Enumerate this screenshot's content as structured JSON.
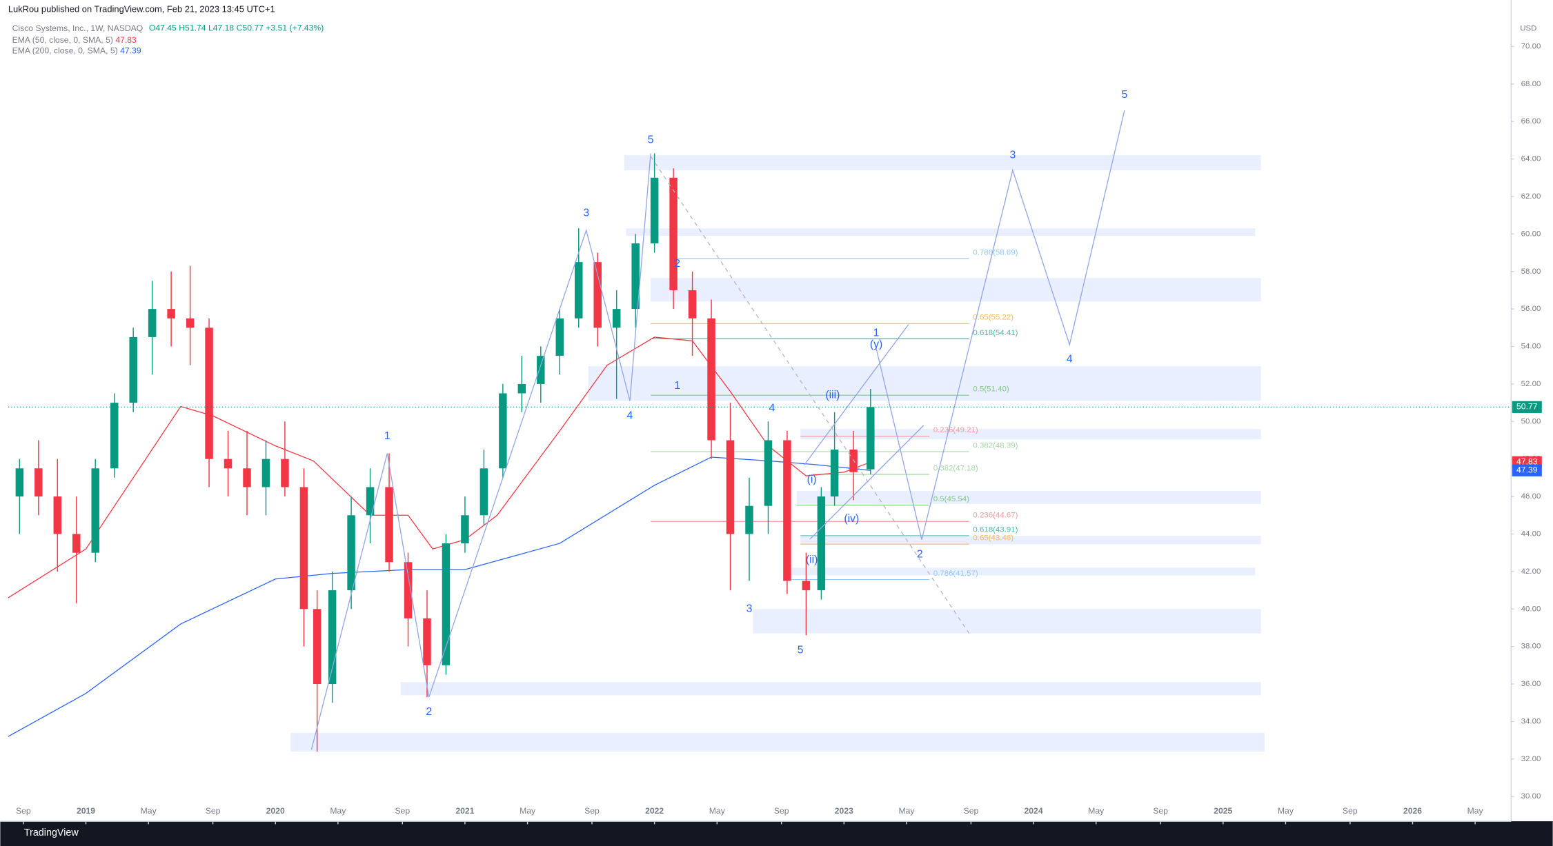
{
  "header": {
    "publisher": "LukRou published on TradingView.com, Feb 21, 2023 13:45 UTC+1",
    "footer": "TradingView",
    "currency": "USD"
  },
  "legend": {
    "symbol": "Cisco Systems, Inc., 1W, NASDAQ",
    "open": "O47.45",
    "high": "H51.74",
    "low": "L47.18",
    "close": "C50.77",
    "change": "+3.51 (+7.43%)",
    "ema50": {
      "name": "EMA (50, close, 0, SMA, 5)",
      "value": 47.83
    },
    "ema200": {
      "name": "EMA (200, close, 0, SMA, 5)",
      "value": 47.39
    }
  },
  "chart_data": {
    "type": "candlestick",
    "up_color": "#089981",
    "down_color": "#f23645",
    "xlim": [
      2018.59,
      2026.52
    ],
    "ylim": [
      28.68,
      71.95
    ],
    "xticks": [
      {
        "value": 2018.67,
        "label": "Sep"
      },
      2019,
      {
        "value": 2019.33,
        "label": "May"
      },
      {
        "value": 2019.67,
        "label": "Sep"
      },
      2020,
      {
        "value": 2020.33,
        "label": "May"
      },
      {
        "value": 2020.67,
        "label": "Sep"
      },
      2021,
      {
        "value": 2021.33,
        "label": "May"
      },
      {
        "value": 2021.67,
        "label": "Sep"
      },
      2022,
      {
        "value": 2022.33,
        "label": "May"
      },
      {
        "value": 2022.67,
        "label": "Sep"
      },
      2023,
      {
        "value": 2023.33,
        "label": "May"
      },
      {
        "value": 2023.67,
        "label": "Sep"
      },
      2024,
      {
        "value": 2024.33,
        "label": "May"
      },
      {
        "value": 2024.67,
        "label": "Sep"
      },
      2025,
      {
        "value": 2025.33,
        "label": "May"
      },
      {
        "value": 2025.67,
        "label": "Sep"
      },
      2026,
      {
        "value": 2026.33,
        "label": "May"
      }
    ],
    "yticks": [
      {
        "value": 30,
        "label": "30.00"
      },
      {
        "value": 32,
        "label": "32.00"
      },
      {
        "value": 34,
        "label": "34.00"
      },
      {
        "value": 36,
        "label": "36.00"
      },
      {
        "value": 38,
        "label": "38.00"
      },
      {
        "value": 40,
        "label": "40.00"
      },
      {
        "value": 42,
        "label": "42.00"
      },
      {
        "value": 44,
        "label": "44.00"
      },
      {
        "value": 46,
        "label": "46.00"
      },
      {
        "value": 48,
        "label": "48.00"
      },
      {
        "value": 50,
        "label": "50.00"
      },
      {
        "value": 52,
        "label": "52.00"
      },
      {
        "value": 54,
        "label": "54.00"
      },
      {
        "value": 56,
        "label": "56.00"
      },
      {
        "value": 58,
        "label": "58.00"
      },
      {
        "value": 60,
        "label": "60.00"
      },
      {
        "value": 62,
        "label": "62.00"
      },
      {
        "value": 64,
        "label": "64.00"
      },
      {
        "value": 66,
        "label": "66.00"
      },
      {
        "value": 68,
        "label": "68.00"
      },
      {
        "value": 70,
        "label": "70.00"
      }
    ],
    "x": [
      2018.65,
      2018.75,
      2018.85,
      2018.95,
      2019.05,
      2019.15,
      2019.25,
      2019.35,
      2019.45,
      2019.55,
      2019.65,
      2019.75,
      2019.85,
      2019.95,
      2020.05,
      2020.15,
      2020.22,
      2020.3,
      2020.4,
      2020.5,
      2020.6,
      2020.7,
      2020.8,
      2020.9,
      2021.0,
      2021.1,
      2021.2,
      2021.3,
      2021.4,
      2021.5,
      2021.6,
      2021.7,
      2021.8,
      2021.9,
      2022.0,
      2022.1,
      2022.2,
      2022.3,
      2022.4,
      2022.5,
      2022.6,
      2022.7,
      2022.8,
      2022.88,
      2022.95,
      2023.05,
      2023.14
    ],
    "open": [
      46,
      47.5,
      46,
      44,
      43,
      47.5,
      51,
      54.5,
      56,
      55.5,
      55,
      48,
      47.5,
      46.5,
      48,
      46.5,
      40,
      36,
      41,
      45,
      46.5,
      42.5,
      39.5,
      37,
      43.5,
      45,
      47.5,
      51.5,
      52,
      53.5,
      55.5,
      58.5,
      55,
      56,
      59.5,
      63,
      57,
      55.5,
      49,
      44,
      45.5,
      49,
      41.5,
      41,
      46,
      48.5,
      47.45
    ],
    "high": [
      48,
      49,
      48,
      46,
      48,
      51.5,
      55,
      57.5,
      58,
      58.3,
      55.5,
      49.5,
      49.5,
      49,
      50,
      47.5,
      41,
      42,
      46,
      47.5,
      48.3,
      43,
      41,
      44,
      46,
      48.5,
      52,
      53.5,
      54,
      56,
      60.3,
      59,
      57,
      60,
      64.3,
      63.5,
      58,
      56.5,
      51,
      47,
      50,
      49.5,
      43,
      46.5,
      50.5,
      49.5,
      51.74
    ],
    "low": [
      44,
      45,
      42,
      40.3,
      42.5,
      47,
      50.5,
      52.5,
      54,
      53,
      46.5,
      46,
      45,
      45,
      46,
      38,
      32.4,
      35,
      40,
      43.5,
      42,
      38,
      35.3,
      36.5,
      43,
      44.5,
      47,
      50.5,
      51,
      52.5,
      55,
      54,
      51.2,
      55,
      59,
      56,
      53.5,
      48,
      41,
      41.5,
      44,
      40.8,
      38.6,
      40.5,
      45.5,
      45.8,
      47.18
    ],
    "close": [
      47.5,
      46,
      44,
      43,
      47.5,
      51,
      54.5,
      56,
      55.5,
      55,
      48,
      47.5,
      46.5,
      48,
      46.5,
      40,
      36,
      41,
      45,
      46.5,
      42.5,
      39.5,
      37,
      43.5,
      45,
      47.5,
      51.5,
      52,
      53.5,
      55.5,
      58.5,
      55,
      56,
      59.5,
      63,
      57,
      55.5,
      49,
      44,
      45.5,
      49,
      41.5,
      41,
      46,
      48.5,
      47.3,
      50.77
    ],
    "lines": [
      {
        "name": "EMA 50",
        "color": "#f23645",
        "x": [
          2018.59,
          2019.0,
          2019.5,
          2019.67,
          2020.0,
          2020.2,
          2020.5,
          2020.7,
          2020.83,
          2021.0,
          2021.17,
          2021.5,
          2021.75,
          2022.0,
          2022.2,
          2022.4,
          2022.6,
          2022.8,
          2023.0,
          2023.14
        ],
        "values": [
          40.6,
          43.2,
          50.8,
          50.3,
          48.7,
          47.9,
          45,
          45,
          43.2,
          43.7,
          45,
          49.5,
          53,
          54.5,
          54.3,
          51.6,
          48.7,
          47.1,
          47.3,
          47.83
        ]
      },
      {
        "name": "EMA 200",
        "color": "#2962ff",
        "x": [
          2018.59,
          2019.0,
          2019.5,
          2020.0,
          2020.3,
          2020.7,
          2021.0,
          2021.5,
          2022.0,
          2022.3,
          2022.6,
          2022.85,
          2023.14
        ],
        "values": [
          33.2,
          35.5,
          39.2,
          41.6,
          41.9,
          42.1,
          42.1,
          43.5,
          46.6,
          48.1,
          47.9,
          47.7,
          47.39
        ]
      }
    ],
    "price_labels": [
      {
        "value": 50.77,
        "color": "#089981"
      },
      {
        "value": 47.83,
        "color": "#f23645"
      },
      {
        "value": 47.39,
        "color": "#2962ff"
      }
    ],
    "zones": [
      {
        "x": [
          2021.84,
          2025.2
        ],
        "y": [
          63.4,
          64.2
        ]
      },
      {
        "x": [
          2021.85,
          2025.17
        ],
        "y": [
          59.9,
          60.3
        ]
      },
      {
        "x": [
          2021.98,
          2025.2
        ],
        "y": [
          56.4,
          57.65
        ]
      },
      {
        "x": [
          2021.65,
          2025.2
        ],
        "y": [
          51.1,
          52.95
        ]
      },
      {
        "x": [
          2022.77,
          2025.2
        ],
        "y": [
          49.05,
          49.6
        ]
      },
      {
        "x": [
          2022.75,
          2025.2
        ],
        "y": [
          45.6,
          46.3
        ]
      },
      {
        "x": [
          2022.77,
          2025.2
        ],
        "y": [
          43.45,
          43.9
        ]
      },
      {
        "x": [
          2022.68,
          2025.17
        ],
        "y": [
          41.8,
          42.2
        ]
      },
      {
        "x": [
          2022.52,
          2025.2
        ],
        "y": [
          38.7,
          40.0
        ]
      },
      {
        "x": [
          2020.66,
          2025.2
        ],
        "y": [
          35.4,
          36.1
        ]
      },
      {
        "x": [
          2020.08,
          2025.22
        ],
        "y": [
          32.4,
          33.4
        ]
      }
    ],
    "fibs": [
      {
        "label": "0.786(58.69)",
        "value": 58.69,
        "color": "#90caf9",
        "x": [
          2022.1,
          2023.66
        ]
      },
      {
        "label": "0.65(55.22)",
        "value": 55.22,
        "color": "#ffb74d",
        "x": [
          2021.98,
          2023.66
        ]
      },
      {
        "label": "0.618(54.41)",
        "value": 54.41,
        "color": "#4db6ac",
        "x": [
          2021.98,
          2023.66
        ]
      },
      {
        "label": "0.5(51.40)",
        "value": 51.4,
        "color": "#81c784",
        "x": [
          2021.98,
          2023.66
        ]
      },
      {
        "label": "0.236(49.21)",
        "value": 49.21,
        "color": "#ef9a9a",
        "x": [
          2022.77,
          2023.45
        ]
      },
      {
        "label": "0.382(48.39)",
        "value": 48.39,
        "color": "#a5d6a7",
        "x": [
          2021.98,
          2023.66
        ]
      },
      {
        "label": "0.382(47.18)",
        "value": 47.18,
        "color": "#a5d6a7",
        "x": [
          2022.83,
          2023.45
        ]
      },
      {
        "label": "0.5(45.54)",
        "value": 45.54,
        "color": "#81c784",
        "x": [
          2022.75,
          2023.45
        ]
      },
      {
        "label": "0.236(44.67)",
        "value": 44.67,
        "color": "#ef9a9a",
        "x": [
          2021.98,
          2023.66
        ]
      },
      {
        "label": "0.618(43.91)",
        "value": 43.91,
        "color": "#4db6ac",
        "x": [
          2022.77,
          2023.66
        ]
      },
      {
        "label": "0.65(43.46)",
        "value": 43.46,
        "color": "#ffb74d",
        "x": [
          2022.77,
          2023.66
        ]
      },
      {
        "label": "0.786(41.57)",
        "value": 41.57,
        "color": "#90caf9",
        "x": [
          2022.68,
          2023.45
        ]
      }
    ],
    "wave_labels": [
      {
        "text": "5",
        "x": 2021.98,
        "y": 65.0
      },
      {
        "text": "3",
        "x": 2021.64,
        "y": 61.1
      },
      {
        "text": "2",
        "x": 2022.12,
        "y": 58.4
      },
      {
        "text": "1",
        "x": 2022.12,
        "y": 51.9
      },
      {
        "text": "4",
        "x": 2021.87,
        "y": 50.3
      },
      {
        "text": "4",
        "x": 2022.62,
        "y": 50.7
      },
      {
        "text": "3",
        "x": 2022.5,
        "y": 40.0
      },
      {
        "text": "5",
        "x": 2022.77,
        "y": 37.8
      },
      {
        "text": "1",
        "x": 2020.59,
        "y": 49.2
      },
      {
        "text": "2",
        "x": 2020.81,
        "y": 34.5
      },
      {
        "text": "(iii)",
        "x": 2022.94,
        "y": 51.4
      },
      {
        "text": "(i)",
        "x": 2022.83,
        "y": 46.9
      },
      {
        "text": "(ii)",
        "x": 2022.83,
        "y": 42.6
      },
      {
        "text": "(iv)",
        "x": 2023.04,
        "y": 44.8
      },
      {
        "text": "(y)",
        "x": 2023.17,
        "y": 54.1
      },
      {
        "text": "1",
        "x": 2023.17,
        "y": 54.7
      },
      {
        "text": "2",
        "x": 2023.4,
        "y": 42.9
      },
      {
        "text": "3",
        "x": 2023.89,
        "y": 64.2
      },
      {
        "text": "4",
        "x": 2024.19,
        "y": 53.3
      },
      {
        "text": "5",
        "x": 2024.48,
        "y": 67.4
      }
    ],
    "wave_paths": [
      {
        "x": [
          2020.19,
          2020.59,
          2020.81,
          2021.64,
          2021.87,
          2021.98
        ],
        "y": [
          32.5,
          48.3,
          35.3,
          60.2,
          51.1,
          64.3
        ]
      },
      {
        "x": [
          2023.17,
          2023.41,
          2023.89,
          2024.19,
          2024.48
        ],
        "y": [
          53.9,
          43.7,
          63.4,
          54.1,
          66.6
        ]
      },
      {
        "x": [
          2022.79,
          2023.34
        ],
        "y": [
          47.68,
          55.17
        ]
      },
      {
        "x": [
          2022.82,
          2023.42
        ],
        "y": [
          43.72,
          49.79
        ]
      },
      {
        "x": [
          2021.98,
          2023.66
        ],
        "y": [
          64.14,
          38.7
        ],
        "dashed": true
      }
    ]
  }
}
